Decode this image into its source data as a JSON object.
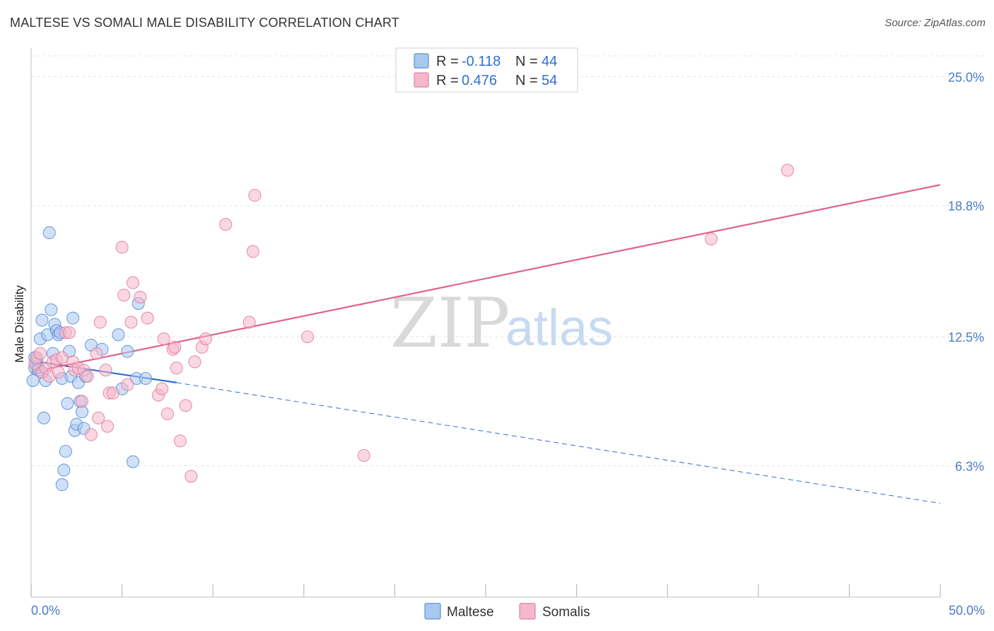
{
  "title": "MALTESE VS SOMALI MALE DISABILITY CORRELATION CHART",
  "source": "Source: ZipAtlas.com",
  "watermark": {
    "part1": "ZIP",
    "part2": "atlas"
  },
  "colors": {
    "maltese_fill": "#a9c8f0",
    "maltese_stroke": "#5b8fd8",
    "maltese_line": "#2f6fd0",
    "somali_fill": "#f5b8cb",
    "somali_stroke": "#e37fa0",
    "somali_line": "#e0628d",
    "tick_text": "#4a7cc4",
    "grid": "#e4e4e4"
  },
  "legend": {
    "rows": [
      {
        "r_label": "R =",
        "r_value": "-0.118",
        "n_label": "N =",
        "n_value": "44"
      },
      {
        "r_label": "R =",
        "r_value": "0.476",
        "n_label": "N =",
        "n_value": "54"
      }
    ]
  },
  "bottom_legend": [
    "Maltese",
    "Somalis"
  ],
  "chart_data": {
    "type": "scatter",
    "title": "MALTESE VS SOMALI MALE DISABILITY CORRELATION CHART",
    "xlabel": "",
    "ylabel": "Male Disability",
    "xlim": [
      0,
      50
    ],
    "ylim": [
      0,
      26.3
    ],
    "x_tick_labels": [
      "0.0%",
      "50.0%"
    ],
    "y_ticks": [
      6.3,
      12.5,
      18.8,
      25.0
    ],
    "y_tick_labels": [
      "6.3%",
      "12.5%",
      "18.8%",
      "25.0%"
    ],
    "grid": "horizontal dashed",
    "series": [
      {
        "name": "Maltese",
        "r": -0.118,
        "n": 44,
        "points": [
          [
            0.1,
            10.4
          ],
          [
            0.2,
            11.0
          ],
          [
            0.2,
            11.5
          ],
          [
            0.3,
            11.2
          ],
          [
            0.3,
            11.4
          ],
          [
            0.4,
            11.0
          ],
          [
            0.5,
            12.4
          ],
          [
            0.6,
            13.3
          ],
          [
            0.7,
            8.6
          ],
          [
            0.8,
            10.4
          ],
          [
            0.9,
            12.6
          ],
          [
            1.0,
            17.5
          ],
          [
            1.1,
            13.8
          ],
          [
            1.2,
            11.7
          ],
          [
            1.3,
            13.1
          ],
          [
            1.4,
            12.8
          ],
          [
            1.5,
            12.6
          ],
          [
            1.6,
            12.7
          ],
          [
            1.7,
            10.5
          ],
          [
            1.7,
            5.4
          ],
          [
            1.8,
            6.1
          ],
          [
            1.9,
            7.0
          ],
          [
            2.0,
            9.3
          ],
          [
            2.1,
            11.8
          ],
          [
            2.2,
            10.6
          ],
          [
            2.3,
            13.4
          ],
          [
            2.4,
            8.0
          ],
          [
            2.5,
            8.3
          ],
          [
            2.6,
            10.3
          ],
          [
            2.7,
            9.4
          ],
          [
            2.8,
            8.9
          ],
          [
            2.9,
            8.1
          ],
          [
            3.0,
            10.6
          ],
          [
            3.3,
            12.1
          ],
          [
            3.9,
            11.9
          ],
          [
            4.8,
            12.6
          ],
          [
            5.0,
            10.0
          ],
          [
            5.3,
            11.8
          ],
          [
            5.6,
            6.5
          ],
          [
            5.8,
            10.5
          ],
          [
            5.9,
            14.1
          ],
          [
            6.3,
            10.5
          ],
          [
            0.4,
            10.9
          ],
          [
            0.6,
            10.8
          ]
        ]
      },
      {
        "name": "Somalis",
        "r": 0.476,
        "n": 54,
        "points": [
          [
            0.2,
            11.2
          ],
          [
            0.3,
            11.5
          ],
          [
            0.5,
            11.7
          ],
          [
            0.6,
            10.8
          ],
          [
            0.8,
            11.0
          ],
          [
            1.0,
            10.6
          ],
          [
            1.2,
            11.3
          ],
          [
            1.4,
            11.4
          ],
          [
            1.5,
            10.8
          ],
          [
            1.7,
            11.5
          ],
          [
            1.9,
            12.7
          ],
          [
            2.1,
            12.7
          ],
          [
            2.3,
            11.3
          ],
          [
            2.4,
            10.9
          ],
          [
            2.6,
            11.0
          ],
          [
            2.8,
            9.4
          ],
          [
            2.9,
            10.9
          ],
          [
            3.1,
            10.6
          ],
          [
            3.3,
            7.8
          ],
          [
            3.6,
            11.7
          ],
          [
            3.7,
            8.6
          ],
          [
            3.8,
            13.2
          ],
          [
            4.1,
            10.9
          ],
          [
            4.2,
            8.2
          ],
          [
            4.3,
            9.8
          ],
          [
            4.5,
            9.8
          ],
          [
            5.0,
            16.8
          ],
          [
            5.1,
            14.5
          ],
          [
            5.3,
            10.2
          ],
          [
            5.5,
            13.2
          ],
          [
            5.6,
            15.1
          ],
          [
            6.0,
            14.4
          ],
          [
            6.4,
            13.4
          ],
          [
            7.0,
            9.7
          ],
          [
            7.2,
            10.0
          ],
          [
            7.3,
            12.4
          ],
          [
            7.5,
            8.8
          ],
          [
            7.8,
            11.9
          ],
          [
            7.9,
            12.0
          ],
          [
            8.0,
            11.0
          ],
          [
            8.2,
            7.5
          ],
          [
            8.5,
            9.2
          ],
          [
            8.8,
            5.8
          ],
          [
            9.0,
            11.3
          ],
          [
            9.4,
            12.0
          ],
          [
            9.6,
            12.4
          ],
          [
            10.7,
            17.9
          ],
          [
            12.0,
            13.2
          ],
          [
            12.2,
            16.6
          ],
          [
            12.3,
            19.3
          ],
          [
            15.2,
            12.5
          ],
          [
            18.3,
            6.8
          ],
          [
            37.4,
            17.2
          ],
          [
            41.6,
            20.5
          ]
        ]
      }
    ],
    "trend_lines": [
      {
        "series": "Maltese",
        "x_start": 0,
        "y_start": 11.35,
        "x_solid_end": 8.0,
        "y_solid_end": 10.3,
        "x_end": 50,
        "y_end": 4.5,
        "extension": "dashed"
      },
      {
        "series": "Somalis",
        "x_start": 0,
        "y_start": 10.8,
        "x_end": 50,
        "y_end": 19.8
      }
    ]
  }
}
